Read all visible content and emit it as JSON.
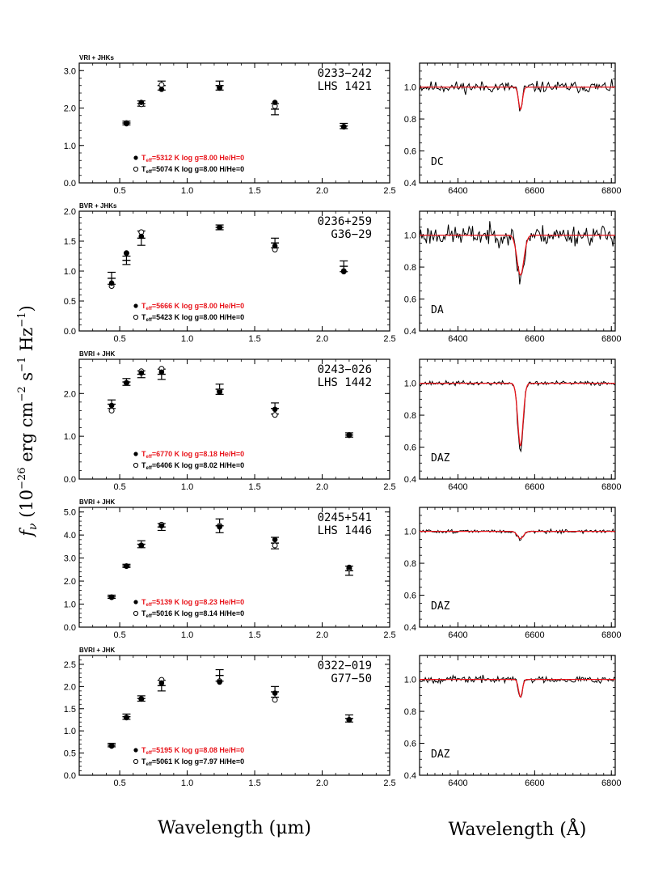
{
  "figure": {
    "ylabel_left": "f",
    "ylabel_sub": "ν",
    "ylabel_rest": " (10",
    "ylabel_exp1": "−26",
    "ylabel_mid": " erg cm",
    "ylabel_exp2": "−2",
    "ylabel_s": " s",
    "ylabel_exp3": "−1",
    "ylabel_hz": " Hz",
    "ylabel_exp4": "−1",
    "ylabel_close": ")",
    "xlabel_left": "Wavelength (μm)",
    "xlabel_right": "Wavelength (Å)"
  },
  "chart_data": [
    {
      "type": "scatter",
      "star": "0233−242",
      "alias": "LHS 1421",
      "phot": "VRI + JHKs",
      "ylim": [
        0,
        3.2
      ],
      "yticks": [
        0.0,
        1.0,
        2.0,
        3.0
      ],
      "yticklabels": [
        "0.0",
        "1.0",
        "2.0",
        "3.0"
      ],
      "xlim": [
        0.2,
        2.5
      ],
      "xticks": [
        0.5,
        1.0,
        1.5,
        2.0,
        2.5
      ],
      "xticklabels": [
        "0.5",
        "1.0",
        "1.5",
        "2.0",
        "2.5"
      ],
      "observed": [
        {
          "x": 0.55,
          "y": 1.6,
          "err": 0.05
        },
        {
          "x": 0.66,
          "y": 2.12,
          "err": 0.07
        },
        {
          "x": 0.81,
          "y": 2.6,
          "err": 0.12
        },
        {
          "x": 1.24,
          "y": 2.6,
          "err": 0.12
        },
        {
          "x": 1.65,
          "y": 1.97,
          "err": 0.15
        },
        {
          "x": 2.16,
          "y": 1.52,
          "err": 0.07
        }
      ],
      "model_he": [
        {
          "x": 0.55,
          "y": 1.58
        },
        {
          "x": 0.66,
          "y": 2.15
        },
        {
          "x": 0.81,
          "y": 2.5
        },
        {
          "x": 1.24,
          "y": 2.53
        },
        {
          "x": 1.65,
          "y": 2.15
        },
        {
          "x": 2.16,
          "y": 1.5
        }
      ],
      "model_h": [
        {
          "x": 0.55,
          "y": 1.6
        },
        {
          "x": 0.66,
          "y": 2.1
        },
        {
          "x": 0.81,
          "y": 2.62
        },
        {
          "x": 1.24,
          "y": 2.55
        },
        {
          "x": 1.65,
          "y": 2.05
        },
        {
          "x": 2.16,
          "y": 1.5
        }
      ],
      "legend_he": {
        "teff": "5312",
        "logg": "8.00",
        "comp": "He/H=0"
      },
      "legend_h": {
        "teff": "5074",
        "logg": "8.00",
        "comp": "H/He=0"
      },
      "spectral_type": "DC",
      "spec": {
        "ylim": [
          0.4,
          1.15
        ],
        "xlim": [
          6300,
          6810
        ],
        "yticks": [
          0.4,
          0.6,
          0.8,
          1.0
        ],
        "yticklabels": [
          "0.4",
          "0.6",
          "0.8",
          "1.0"
        ],
        "xticks": [
          6400,
          6600,
          6800
        ],
        "xticklabels": [
          "6400",
          "6600",
          "6800"
        ],
        "depth": 0.14,
        "width": 5,
        "noise": 0.025,
        "seed": 11
      }
    },
    {
      "type": "scatter",
      "star": "0236+259",
      "alias": "G36−29",
      "phot": "BVR + JHKs",
      "ylim": [
        0,
        2.0
      ],
      "yticks": [
        0.0,
        0.5,
        1.0,
        1.5,
        2.0
      ],
      "yticklabels": [
        "0.0",
        "0.5",
        "1.0",
        "1.5",
        "2.0"
      ],
      "xlim": [
        0.2,
        2.5
      ],
      "xticks": [
        0.5,
        1.0,
        1.5,
        2.0,
        2.5
      ],
      "xticklabels": [
        "0.5",
        "1.0",
        "1.5",
        "2.0",
        "2.5"
      ],
      "observed": [
        {
          "x": 0.44,
          "y": 0.88,
          "err": 0.1
        },
        {
          "x": 0.55,
          "y": 1.18,
          "err": 0.07
        },
        {
          "x": 0.66,
          "y": 1.55,
          "err": 0.12
        },
        {
          "x": 1.24,
          "y": 1.73,
          "err": 0.04
        },
        {
          "x": 1.65,
          "y": 1.47,
          "err": 0.08
        },
        {
          "x": 2.16,
          "y": 1.08,
          "err": 0.09
        }
      ],
      "model_he": [
        {
          "x": 0.44,
          "y": 0.8
        },
        {
          "x": 0.55,
          "y": 1.3
        },
        {
          "x": 0.66,
          "y": 1.58
        },
        {
          "x": 1.24,
          "y": 1.73
        },
        {
          "x": 1.65,
          "y": 1.42
        },
        {
          "x": 2.16,
          "y": 0.99
        }
      ],
      "model_h": [
        {
          "x": 0.44,
          "y": 0.75
        },
        {
          "x": 0.55,
          "y": 1.3
        },
        {
          "x": 0.66,
          "y": 1.65
        },
        {
          "x": 1.24,
          "y": 1.73
        },
        {
          "x": 1.65,
          "y": 1.36
        },
        {
          "x": 2.16,
          "y": 1.0
        }
      ],
      "legend_he": {
        "teff": "5666",
        "logg": "8.00",
        "comp": "He/H=0"
      },
      "legend_h": {
        "teff": "5423",
        "logg": "8.00",
        "comp": "H/He=0"
      },
      "spectral_type": "DA",
      "spec": {
        "ylim": [
          0.4,
          1.15
        ],
        "xlim": [
          6300,
          6810
        ],
        "yticks": [
          0.4,
          0.6,
          0.8,
          1.0
        ],
        "yticklabels": [
          "0.4",
          "0.6",
          "0.8",
          "1.0"
        ],
        "xticks": [
          6400,
          6600,
          6800
        ],
        "xticklabels": [
          "6400",
          "6600",
          "6800"
        ],
        "depth": 0.25,
        "width": 9,
        "noise": 0.045,
        "seed": 23
      }
    },
    {
      "type": "scatter",
      "star": "0243−026",
      "alias": "LHS 1442",
      "phot": "BVRI + JHK",
      "ylim": [
        0,
        2.8
      ],
      "yticks": [
        0.0,
        1.0,
        2.0
      ],
      "yticklabels": [
        "0.0",
        "1.0",
        "2.0"
      ],
      "xlim": [
        0.2,
        2.5
      ],
      "xticks": [
        0.5,
        1.0,
        1.5,
        2.0,
        2.5
      ],
      "xticklabels": [
        "0.5",
        "1.0",
        "1.5",
        "2.0",
        "2.5"
      ],
      "observed": [
        {
          "x": 0.44,
          "y": 1.75,
          "err": 0.1
        },
        {
          "x": 0.55,
          "y": 2.27,
          "err": 0.08
        },
        {
          "x": 0.66,
          "y": 2.45,
          "err": 0.08
        },
        {
          "x": 0.81,
          "y": 2.45,
          "err": 0.12
        },
        {
          "x": 1.24,
          "y": 2.1,
          "err": 0.12
        },
        {
          "x": 1.65,
          "y": 1.65,
          "err": 0.13
        },
        {
          "x": 2.2,
          "y": 1.03,
          "err": 0.05
        }
      ],
      "model_he": [
        {
          "x": 0.44,
          "y": 1.72
        },
        {
          "x": 0.55,
          "y": 2.25
        },
        {
          "x": 0.66,
          "y": 2.48
        },
        {
          "x": 0.81,
          "y": 2.5
        },
        {
          "x": 1.24,
          "y": 2.03
        },
        {
          "x": 1.65,
          "y": 1.63
        },
        {
          "x": 2.2,
          "y": 1.02
        }
      ],
      "model_h": [
        {
          "x": 0.44,
          "y": 1.6
        },
        {
          "x": 0.55,
          "y": 2.25
        },
        {
          "x": 0.66,
          "y": 2.52
        },
        {
          "x": 0.81,
          "y": 2.58
        },
        {
          "x": 1.24,
          "y": 2.05
        },
        {
          "x": 1.65,
          "y": 1.5
        },
        {
          "x": 2.2,
          "y": 1.03
        }
      ],
      "legend_he": {
        "teff": "6770",
        "logg": "8.18",
        "comp": "He/H=0"
      },
      "legend_h": {
        "teff": "6406",
        "logg": "8.02",
        "comp": "H/He=0"
      },
      "spectral_type": "DAZ",
      "spec": {
        "ylim": [
          0.4,
          1.15
        ],
        "xlim": [
          6300,
          6810
        ],
        "yticks": [
          0.4,
          0.6,
          0.8,
          1.0
        ],
        "yticklabels": [
          "0.4",
          "0.6",
          "0.8",
          "1.0"
        ],
        "xticks": [
          6400,
          6600,
          6800
        ],
        "xticklabels": [
          "6400",
          "6600",
          "6800"
        ],
        "depth": 0.39,
        "width": 7,
        "noise": 0.01,
        "seed": 37
      }
    },
    {
      "type": "scatter",
      "star": "0245+541",
      "alias": "LHS 1446",
      "phot": "BVRI + JHK",
      "ylim": [
        0,
        5.2
      ],
      "yticks": [
        0.0,
        1.0,
        2.0,
        3.0,
        4.0,
        5.0
      ],
      "yticklabels": [
        "0.0",
        "1.0",
        "2.0",
        "3.0",
        "4.0",
        "5.0"
      ],
      "xlim": [
        0.2,
        2.5
      ],
      "xticks": [
        0.5,
        1.0,
        1.5,
        2.0,
        2.5
      ],
      "xticklabels": [
        "0.5",
        "1.0",
        "1.5",
        "2.0",
        "2.5"
      ],
      "observed": [
        {
          "x": 0.44,
          "y": 1.32,
          "err": 0.07
        },
        {
          "x": 0.55,
          "y": 2.66,
          "err": 0.07
        },
        {
          "x": 0.66,
          "y": 3.6,
          "err": 0.15
        },
        {
          "x": 0.81,
          "y": 4.35,
          "err": 0.15
        },
        {
          "x": 1.24,
          "y": 4.4,
          "err": 0.3
        },
        {
          "x": 1.65,
          "y": 3.65,
          "err": 0.25
        },
        {
          "x": 2.2,
          "y": 2.45,
          "err": 0.2
        }
      ],
      "model_he": [
        {
          "x": 0.44,
          "y": 1.3
        },
        {
          "x": 0.55,
          "y": 2.65
        },
        {
          "x": 0.66,
          "y": 3.55
        },
        {
          "x": 0.81,
          "y": 4.4
        },
        {
          "x": 1.24,
          "y": 4.35
        },
        {
          "x": 1.65,
          "y": 3.8
        },
        {
          "x": 2.2,
          "y": 2.6
        }
      ],
      "model_h": [
        {
          "x": 0.44,
          "y": 1.3
        },
        {
          "x": 0.55,
          "y": 2.65
        },
        {
          "x": 0.66,
          "y": 3.55
        },
        {
          "x": 0.81,
          "y": 4.45
        },
        {
          "x": 1.24,
          "y": 4.4
        },
        {
          "x": 1.65,
          "y": 3.55
        },
        {
          "x": 2.2,
          "y": 2.55
        }
      ],
      "legend_he": {
        "teff": "5139",
        "logg": "8.23",
        "comp": "He/H=0"
      },
      "legend_h": {
        "teff": "5016",
        "logg": "8.14",
        "comp": "H/He=0"
      },
      "spectral_type": "DAZ",
      "spec": {
        "ylim": [
          0.4,
          1.15
        ],
        "xlim": [
          6300,
          6810
        ],
        "yticks": [
          0.4,
          0.6,
          0.8,
          1.0
        ],
        "yticklabels": [
          "0.4",
          "0.6",
          "0.8",
          "1.0"
        ],
        "xticks": [
          6400,
          6600,
          6800
        ],
        "xticklabels": [
          "6400",
          "6600",
          "6800"
        ],
        "depth": 0.045,
        "width": 8,
        "noise": 0.008,
        "seed": 51
      }
    },
    {
      "type": "scatter",
      "star": "0322−019",
      "alias": "G77−50",
      "phot": "BVRI + JHK",
      "ylim": [
        0,
        2.7
      ],
      "yticks": [
        0.0,
        0.5,
        1.0,
        1.5,
        2.0,
        2.5
      ],
      "yticklabels": [
        "0.0",
        "0.5",
        "1.0",
        "1.5",
        "2.0",
        "2.5"
      ],
      "xlim": [
        0.2,
        2.5
      ],
      "xticks": [
        0.5,
        1.0,
        1.5,
        2.0,
        2.5
      ],
      "xticklabels": [
        "0.5",
        "1.0",
        "1.5",
        "2.0",
        "2.5"
      ],
      "observed": [
        {
          "x": 0.44,
          "y": 0.68,
          "err": 0.04
        },
        {
          "x": 0.55,
          "y": 1.32,
          "err": 0.06
        },
        {
          "x": 0.66,
          "y": 1.73,
          "err": 0.06
        },
        {
          "x": 0.81,
          "y": 2.02,
          "err": 0.12
        },
        {
          "x": 1.24,
          "y": 2.25,
          "err": 0.13
        },
        {
          "x": 1.65,
          "y": 1.88,
          "err": 0.12
        },
        {
          "x": 2.2,
          "y": 1.28,
          "err": 0.08
        }
      ],
      "model_he": [
        {
          "x": 0.44,
          "y": 0.67
        },
        {
          "x": 0.55,
          "y": 1.3
        },
        {
          "x": 0.66,
          "y": 1.72
        },
        {
          "x": 0.81,
          "y": 2.08
        },
        {
          "x": 1.24,
          "y": 2.1
        },
        {
          "x": 1.65,
          "y": 1.85
        },
        {
          "x": 2.2,
          "y": 1.25
        }
      ],
      "model_h": [
        {
          "x": 0.44,
          "y": 0.66
        },
        {
          "x": 0.55,
          "y": 1.3
        },
        {
          "x": 0.66,
          "y": 1.72
        },
        {
          "x": 0.81,
          "y": 2.15
        },
        {
          "x": 1.24,
          "y": 2.12
        },
        {
          "x": 1.65,
          "y": 1.7
        },
        {
          "x": 2.2,
          "y": 1.25
        }
      ],
      "legend_he": {
        "teff": "5195",
        "logg": "8.08",
        "comp": "He/H=0"
      },
      "legend_h": {
        "teff": "5061",
        "logg": "7.97",
        "comp": "H/He=0"
      },
      "spectral_type": "DAZ",
      "spec": {
        "ylim": [
          0.4,
          1.15
        ],
        "xlim": [
          6300,
          6810
        ],
        "yticks": [
          0.4,
          0.6,
          0.8,
          1.0
        ],
        "yticklabels": [
          "0.4",
          "0.6",
          "0.8",
          "1.0"
        ],
        "xticks": [
          6400,
          6600,
          6800
        ],
        "xticklabels": [
          "6400",
          "6600",
          "6800"
        ],
        "depth": 0.11,
        "width": 5,
        "noise": 0.015,
        "seed": 67
      }
    }
  ],
  "legend_labels": {
    "teff": "T",
    "teff_sub": "eff",
    "logg": "log g",
    "eq": "="
  },
  "colors": {
    "he_model": "#e8141b",
    "h_model": "#000000",
    "spectrum": "#000000",
    "fit": "#e8141b"
  }
}
